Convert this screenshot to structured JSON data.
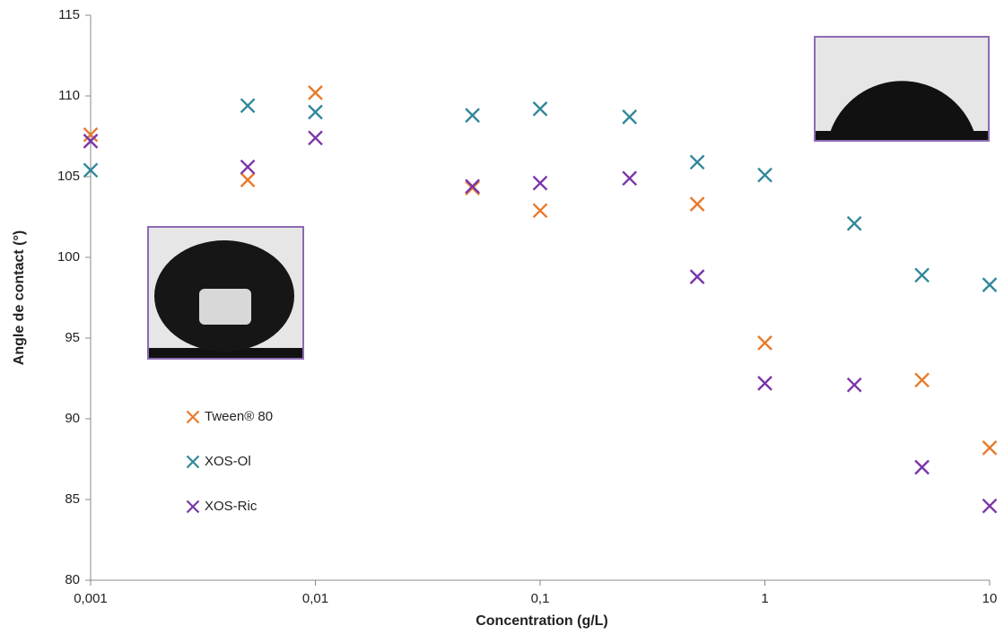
{
  "chart_data": {
    "type": "scatter",
    "xlabel": "Concentration (g/L)",
    "ylabel": "Angle de contact (°)",
    "xscale": "log",
    "xlim": [
      0.001,
      10
    ],
    "xticks": [
      {
        "value": 0.001,
        "label": "0,001"
      },
      {
        "value": 0.01,
        "label": "0,01"
      },
      {
        "value": 0.1,
        "label": "0,1"
      },
      1,
      10
    ],
    "ylim": [
      80,
      115
    ],
    "yticks": [
      80,
      85,
      90,
      95,
      100,
      105,
      110,
      115
    ],
    "legend": "left",
    "series": [
      {
        "name": "Tween® 80",
        "color": "#e87a2a",
        "x": [
          0.001,
          0.005,
          0.01,
          0.05,
          0.1,
          0.5,
          1,
          5,
          10
        ],
        "values": [
          107.6,
          104.8,
          110.2,
          104.3,
          102.9,
          103.3,
          94.7,
          92.4,
          88.2
        ]
      },
      {
        "name": "XOS-Ol",
        "color": "#31879a",
        "x": [
          0.001,
          0.005,
          0.01,
          0.05,
          0.1,
          0.25,
          0.5,
          1,
          2.5,
          5,
          10
        ],
        "values": [
          105.4,
          109.4,
          109.0,
          108.8,
          109.2,
          108.7,
          105.9,
          105.1,
          102.1,
          98.9,
          98.3
        ]
      },
      {
        "name": "XOS-Ric",
        "color": "#7a35a8",
        "x": [
          0.001,
          0.005,
          0.01,
          0.05,
          0.1,
          0.25,
          0.5,
          1,
          2.5,
          5,
          10
        ],
        "values": [
          107.2,
          105.6,
          107.4,
          104.4,
          104.6,
          104.9,
          98.8,
          92.2,
          92.1,
          87.0,
          84.6
        ]
      }
    ]
  }
}
